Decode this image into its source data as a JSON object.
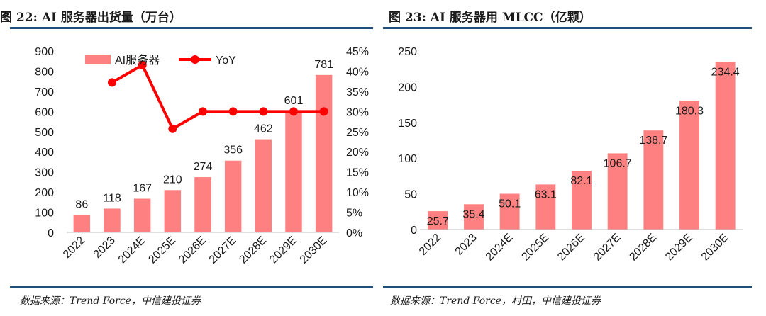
{
  "left": {
    "title": "图 22: AI 服务器出货量（万台）",
    "source": "数据来源：Trend Force，中信建投证券"
  },
  "right": {
    "title": "图 23: AI 服务器用 MLCC（亿颗）",
    "source": "数据来源：Trend Force，村田，中信建投证券"
  },
  "chart_data": [
    {
      "type": "bar",
      "categories": [
        "2022",
        "2023",
        "2024E",
        "2025E",
        "2026E",
        "2027E",
        "2028E",
        "2029E",
        "2030E"
      ],
      "series": [
        {
          "name": "AI服务器",
          "type": "bar",
          "axis": "left",
          "values": [
            86,
            118,
            167,
            210,
            274,
            356,
            462,
            601,
            781
          ]
        },
        {
          "name": "YoY",
          "type": "line",
          "axis": "right",
          "values": [
            null,
            0.372,
            0.415,
            0.257,
            0.3,
            0.3,
            0.3,
            0.3,
            0.3
          ]
        }
      ],
      "ylim": [
        0,
        900
      ],
      "y_ticks": [
        "0",
        "100",
        "200",
        "300",
        "400",
        "500",
        "600",
        "700",
        "800",
        "900"
      ],
      "y2lim": [
        0,
        0.45
      ],
      "y2_ticks": [
        "0%",
        "5%",
        "10%",
        "15%",
        "20%",
        "25%",
        "30%",
        "35%",
        "40%",
        "45%"
      ],
      "bar_labels": [
        "86",
        "118",
        "167",
        "210",
        "274",
        "356",
        "462",
        "601",
        "781"
      ],
      "legend": "top-left",
      "grid": false,
      "colors": {
        "bar": "#ff8080",
        "line": "#ff0000"
      }
    },
    {
      "type": "bar",
      "categories": [
        "2022",
        "2023",
        "2024E",
        "2025E",
        "2026E",
        "2027E",
        "2028E",
        "2029E",
        "2030E"
      ],
      "series": [
        {
          "values": [
            25.7,
            35.4,
            50.1,
            63.1,
            82.1,
            106.7,
            138.7,
            180.3,
            234.4
          ]
        }
      ],
      "ylim": [
        0,
        250
      ],
      "y_ticks": [
        "0",
        "50",
        "100",
        "150",
        "200",
        "250"
      ],
      "bar_labels": [
        "25.7",
        "35.4",
        "50.1",
        "63.1",
        "82.1",
        "106.7",
        "138.7",
        "180.3",
        "234.4"
      ],
      "grid": false,
      "colors": {
        "bar": "#ff8080"
      }
    }
  ]
}
